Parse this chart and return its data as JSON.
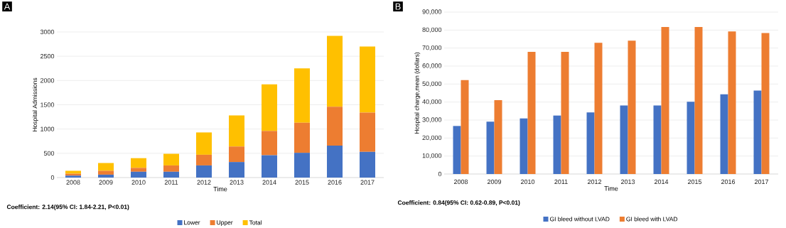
{
  "chart_data": [
    {
      "type": "bar",
      "title": "A",
      "xlabel": "Time",
      "ylabel": "Hospital Admissions",
      "stacked": true,
      "grid": "y",
      "legend": "bottom",
      "categories": [
        "2008",
        "2009",
        "2010",
        "2011",
        "2012",
        "2013",
        "2014",
        "2015",
        "2016",
        "2017"
      ],
      "ylim": [
        0,
        3000
      ],
      "yticks": [
        0,
        500,
        1000,
        1500,
        2000,
        2500,
        3000
      ],
      "series": [
        {
          "name": "Lower",
          "color": "#4472c4",
          "values": [
            40,
            60,
            120,
            120,
            250,
            320,
            460,
            510,
            660,
            530
          ]
        },
        {
          "name": "Upper",
          "color": "#ed7d31",
          "values": [
            40,
            80,
            80,
            130,
            220,
            320,
            500,
            620,
            800,
            810
          ]
        },
        {
          "name": "Total",
          "color": "#ffc000",
          "values": [
            60,
            160,
            200,
            240,
            460,
            640,
            960,
            1120,
            1460,
            1360
          ]
        }
      ],
      "annotations": [
        "Coefficient: 2.14(95% CI: 1.84-2.21, P<0.01)"
      ]
    },
    {
      "type": "bar",
      "title": "B",
      "xlabel": "Time",
      "ylabel": "Hospital charge,mean (dollars)",
      "grid": "y",
      "legend": "bottom",
      "categories": [
        "2008",
        "2009",
        "2010",
        "2011",
        "2012",
        "2013",
        "2014",
        "2015",
        "2016",
        "2017"
      ],
      "ylim": [
        0,
        90000
      ],
      "yticks": [
        0,
        {
          "value": 10000,
          "label": "10,000"
        },
        {
          "value": 20000,
          "label": "20,000"
        },
        {
          "value": 30000,
          "label": "30,000"
        },
        {
          "value": 40000,
          "label": "40,000"
        },
        {
          "value": 50000,
          "label": "50,000"
        },
        {
          "value": 60000,
          "label": "60,000"
        },
        {
          "value": 70000,
          "label": "70,000"
        },
        {
          "value": 80000,
          "label": "80,000"
        },
        {
          "value": 90000,
          "label": "90,000"
        }
      ],
      "series": [
        {
          "name": "GI bleed without LVAD",
          "color": "#4472c4",
          "values": [
            26700,
            29100,
            30900,
            32500,
            34200,
            38100,
            38100,
            40200,
            44300,
            46400
          ]
        },
        {
          "name": "GI bleed with LVAD",
          "color": "#ed7d31",
          "values": [
            52200,
            41100,
            67900,
            67900,
            72900,
            74100,
            81700,
            81700,
            79200,
            78400
          ]
        }
      ],
      "annotations": [
        "Coefficient: 0.84(95% CI: 0.62-0.89, P<0.01)"
      ]
    }
  ]
}
